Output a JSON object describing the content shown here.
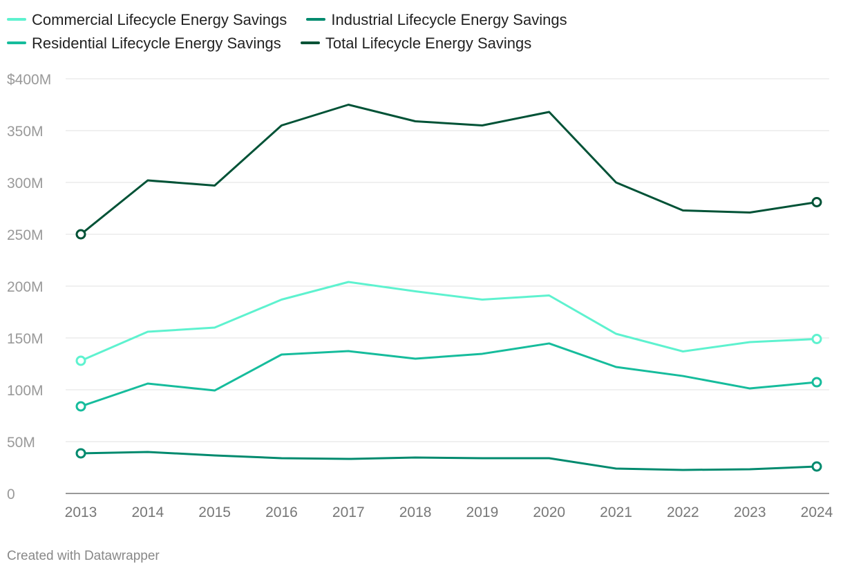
{
  "chart_data": {
    "type": "line",
    "x": [
      "2013",
      "2014",
      "2015",
      "2016",
      "2017",
      "2018",
      "2019",
      "2020",
      "2021",
      "2022",
      "2023",
      "2024"
    ],
    "ylim": [
      0,
      400
    ],
    "yticks": [
      0,
      50,
      100,
      150,
      200,
      250,
      300,
      350,
      400
    ],
    "ytick_labels": [
      "0",
      "50M",
      "100M",
      "150M",
      "200M",
      "250M",
      "300M",
      "350M",
      "$400M"
    ],
    "grid": true,
    "legend": "top",
    "series": [
      {
        "name": "Commercial Lifecycle Energy Savings",
        "color": "#5ef2cf",
        "values": [
          128,
          156,
          160,
          187,
          204,
          195,
          187,
          191,
          154,
          137,
          146,
          149
        ]
      },
      {
        "name": "Industrial Lifecycle Energy Savings",
        "color": "#008a6e",
        "values": [
          38.7,
          40,
          36.7,
          34,
          33.3,
          34.7,
          34,
          34,
          24,
          22.7,
          23.3,
          26
        ]
      },
      {
        "name": "Residential Lifecycle Energy Savings",
        "color": "#16bc9c",
        "values": [
          84,
          106,
          99.3,
          134,
          137.3,
          130,
          134.7,
          144.7,
          122,
          113.3,
          101.3,
          107.3
        ]
      },
      {
        "name": "Total Lifecycle Energy Savings",
        "color": "#005236",
        "values": [
          250,
          302,
          297,
          355,
          375,
          359,
          355,
          368,
          300,
          273,
          271,
          281
        ]
      }
    ]
  },
  "footer": "Created with Datawrapper"
}
